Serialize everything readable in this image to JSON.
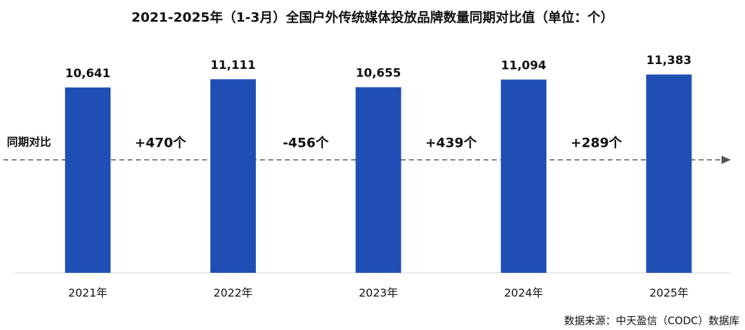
{
  "chart_data": {
    "type": "bar",
    "title": "2021-2025年（1-3月）全国户外传统媒体投放品牌数量同期对比值（单位：个）",
    "categories": [
      "2021年",
      "2022年",
      "2023年",
      "2024年",
      "2025年"
    ],
    "values": [
      10641,
      11111,
      10655,
      11094,
      11383
    ],
    "value_labels": [
      "10,641",
      "11,111",
      "10,655",
      "11,094",
      "11,383"
    ],
    "color": "#1f4fb4",
    "ylim": [
      0,
      14000
    ],
    "comparison_title": "同期对比",
    "comparisons": [
      {
        "value": 470,
        "label": "+470个"
      },
      {
        "value": -456,
        "label": "-456个"
      },
      {
        "value": 439,
        "label": "+439个"
      },
      {
        "value": 289,
        "label": "+289个"
      }
    ],
    "positive_color": "#e0201b",
    "negative_color": "#1fa84f",
    "source": "数据来源：中天盈信（CODC）数据库"
  }
}
